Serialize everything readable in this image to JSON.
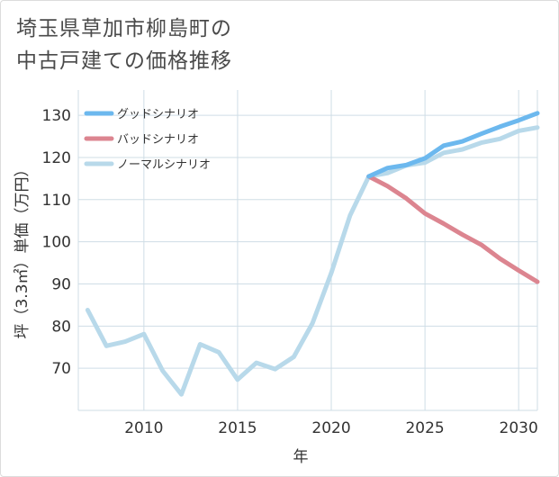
{
  "title": {
    "line1": "埼玉県草加市柳島町の",
    "line2": "中古戸建ての価格推移"
  },
  "chart_data": {
    "type": "line",
    "title": "埼玉県草加市柳島町の中古戸建ての価格推移",
    "xlabel": "年",
    "ylabel": "坪（3.3㎡）単価（万円）",
    "xlim": [
      2006.5,
      2031
    ],
    "ylim": [
      60,
      136
    ],
    "xticks": [
      2010,
      2015,
      2020,
      2025,
      2030
    ],
    "yticks": [
      70,
      80,
      90,
      100,
      110,
      120,
      130
    ],
    "legend_position": "top-left",
    "series": [
      {
        "name": "グッドシナリオ",
        "color": "#6cb8ee",
        "x": [
          2022,
          2023,
          2024,
          2025,
          2026,
          2027,
          2028,
          2029,
          2030,
          2031
        ],
        "y": [
          115.5,
          117.5,
          118.2,
          119.8,
          122.8,
          123.8,
          125.6,
          127.3,
          128.8,
          130.5
        ]
      },
      {
        "name": "バッドシナリオ",
        "color": "#dc8590",
        "x": [
          2022,
          2023,
          2024,
          2025,
          2026,
          2027,
          2028,
          2029,
          2030,
          2031
        ],
        "y": [
          115.5,
          113.2,
          110.3,
          106.7,
          104.3,
          101.7,
          99.3,
          96.0,
          93.2,
          90.5
        ]
      },
      {
        "name": "ノーマルシナリオ",
        "color": "#b8d9ea",
        "x": [
          2007,
          2008,
          2009,
          2010,
          2011,
          2012,
          2013,
          2014,
          2015,
          2016,
          2017,
          2018,
          2019,
          2020,
          2021,
          2022,
          2023,
          2024,
          2025,
          2026,
          2027,
          2028,
          2029,
          2030,
          2031
        ],
        "y": [
          83.8,
          75.3,
          76.3,
          78.1,
          69.4,
          63.8,
          75.7,
          73.8,
          67.3,
          71.3,
          69.8,
          72.7,
          80.7,
          92.6,
          106.2,
          115.5,
          116.3,
          118.1,
          118.8,
          121.1,
          121.9,
          123.5,
          124.4,
          126.3,
          127.1
        ]
      }
    ]
  }
}
